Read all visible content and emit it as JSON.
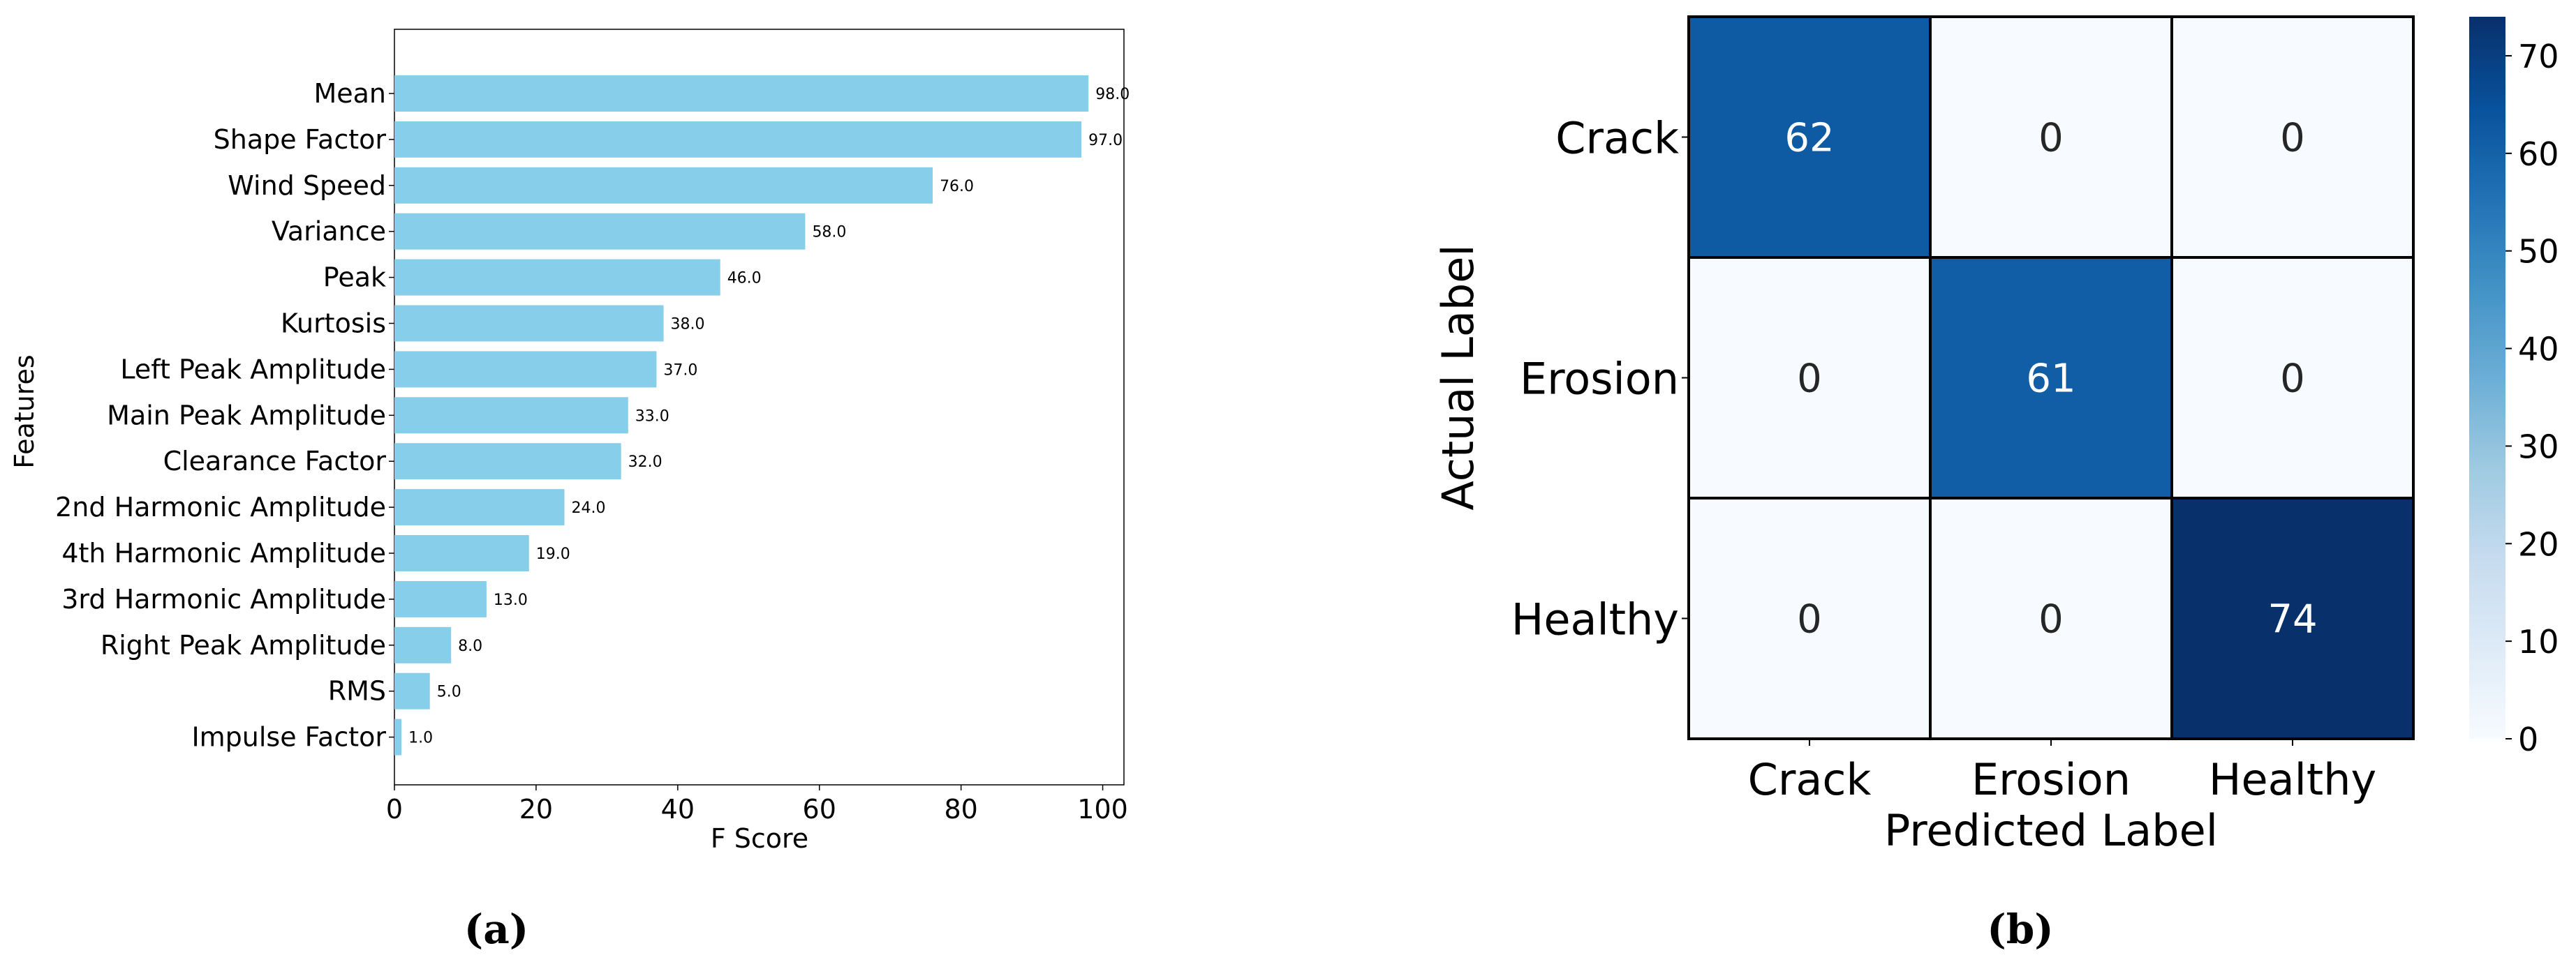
{
  "chart_data": [
    {
      "type": "bar",
      "orientation": "horizontal",
      "panel_label": "(a)",
      "xlabel": "F Score",
      "ylabel": "Features",
      "xlim": [
        0,
        103
      ],
      "xticks": [
        0,
        20,
        40,
        60,
        80,
        100
      ],
      "grid": false,
      "bar_color": "#87ceeb",
      "categories": [
        "Mean",
        "Shape Factor",
        "Wind Speed",
        "Variance",
        "Peak",
        "Kurtosis",
        "Left Peak Amplitude",
        "Main Peak Amplitude",
        "Clearance Factor",
        "2nd Harmonic Amplitude",
        "4th Harmonic Amplitude",
        "3rd Harmonic Amplitude",
        "Right Peak Amplitude",
        "RMS",
        "Impulse Factor"
      ],
      "values": [
        98,
        97,
        76,
        58,
        46,
        38,
        37,
        33,
        32,
        24,
        19,
        13,
        8,
        5,
        1
      ],
      "data_labels": [
        "98.0",
        "97.0",
        "76.0",
        "58.0",
        "46.0",
        "38.0",
        "37.0",
        "33.0",
        "32.0",
        "24.0",
        "19.0",
        "13.0",
        "8.0",
        "5.0",
        "1.0"
      ]
    },
    {
      "type": "heatmap",
      "panel_label": "(b)",
      "xlabel": "Predicted Label",
      "ylabel": "Actual Label",
      "x_categories": [
        "Crack",
        "Erosion",
        "Healthy"
      ],
      "y_categories": [
        "Crack",
        "Erosion",
        "Healthy"
      ],
      "values": [
        [
          62,
          0,
          0
        ],
        [
          0,
          61,
          0
        ],
        [
          0,
          0,
          74
        ]
      ],
      "colormap": "Blues",
      "colorbar": {
        "range": [
          0,
          74
        ],
        "ticks": [
          0,
          10,
          20,
          30,
          40,
          50,
          60,
          70
        ]
      },
      "colors": {
        "low": "#f7fbff",
        "high": "#08306b"
      }
    }
  ]
}
